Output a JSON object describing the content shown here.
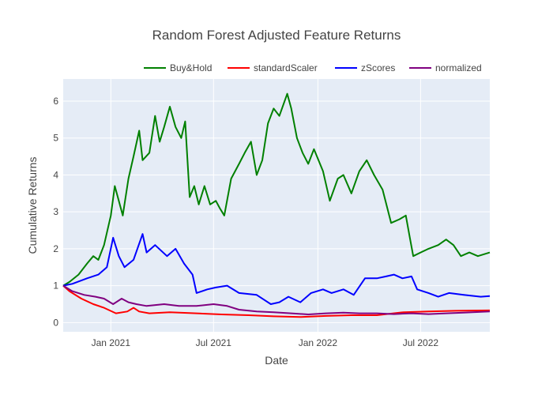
{
  "chart_data": {
    "type": "line",
    "title": "Random Forest Adjusted Feature Returns",
    "xlabel": "Date",
    "ylabel": "Cumulative Returns",
    "xlim": [
      "2020-10-09",
      "2022-10-31"
    ],
    "ylim": [
      -0.25,
      6.6
    ],
    "x_ticks": [
      {
        "date": "2021-01-01",
        "label": "Jan 2021"
      },
      {
        "date": "2021-07-01",
        "label": "Jul 2021"
      },
      {
        "date": "2022-01-01",
        "label": "Jan 2022"
      },
      {
        "date": "2022-07-01",
        "label": "Jul 2022"
      }
    ],
    "y_ticks": [
      0,
      1,
      2,
      3,
      4,
      5,
      6
    ],
    "grid": true,
    "legend_position": "top-right",
    "plot_background": "#E5ECF6",
    "series": [
      {
        "name": "Buy&Hold",
        "color": "#008000",
        "points": [
          [
            "2020-10-09",
            1.0
          ],
          [
            "2020-10-20",
            1.1
          ],
          [
            "2020-11-05",
            1.3
          ],
          [
            "2020-11-20",
            1.6
          ],
          [
            "2020-12-01",
            1.8
          ],
          [
            "2020-12-10",
            1.7
          ],
          [
            "2020-12-20",
            2.1
          ],
          [
            "2021-01-01",
            2.9
          ],
          [
            "2021-01-08",
            3.7
          ],
          [
            "2021-01-15",
            3.3
          ],
          [
            "2021-01-22",
            2.9
          ],
          [
            "2021-02-01",
            3.9
          ],
          [
            "2021-02-10",
            4.5
          ],
          [
            "2021-02-20",
            5.2
          ],
          [
            "2021-02-26",
            4.4
          ],
          [
            "2021-03-10",
            4.6
          ],
          [
            "2021-03-20",
            5.6
          ],
          [
            "2021-03-28",
            4.9
          ],
          [
            "2021-04-05",
            5.3
          ],
          [
            "2021-04-15",
            5.85
          ],
          [
            "2021-04-25",
            5.3
          ],
          [
            "2021-05-05",
            5.0
          ],
          [
            "2021-05-12",
            5.45
          ],
          [
            "2021-05-20",
            3.4
          ],
          [
            "2021-05-28",
            3.7
          ],
          [
            "2021-06-05",
            3.2
          ],
          [
            "2021-06-15",
            3.7
          ],
          [
            "2021-06-25",
            3.2
          ],
          [
            "2021-07-05",
            3.3
          ],
          [
            "2021-07-12",
            3.1
          ],
          [
            "2021-07-20",
            2.9
          ],
          [
            "2021-08-01",
            3.9
          ],
          [
            "2021-08-15",
            4.3
          ],
          [
            "2021-08-25",
            4.6
          ],
          [
            "2021-09-05",
            4.9
          ],
          [
            "2021-09-15",
            4.0
          ],
          [
            "2021-09-25",
            4.4
          ],
          [
            "2021-10-05",
            5.4
          ],
          [
            "2021-10-15",
            5.8
          ],
          [
            "2021-10-25",
            5.6
          ],
          [
            "2021-11-08",
            6.2
          ],
          [
            "2021-11-15",
            5.8
          ],
          [
            "2021-11-25",
            5.0
          ],
          [
            "2021-12-05",
            4.6
          ],
          [
            "2021-12-15",
            4.3
          ],
          [
            "2021-12-25",
            4.7
          ],
          [
            "2022-01-10",
            4.1
          ],
          [
            "2022-01-22",
            3.3
          ],
          [
            "2022-02-05",
            3.9
          ],
          [
            "2022-02-15",
            4.0
          ],
          [
            "2022-03-01",
            3.5
          ],
          [
            "2022-03-15",
            4.1
          ],
          [
            "2022-03-28",
            4.4
          ],
          [
            "2022-04-10",
            4.0
          ],
          [
            "2022-04-25",
            3.6
          ],
          [
            "2022-05-10",
            2.7
          ],
          [
            "2022-05-25",
            2.8
          ],
          [
            "2022-06-05",
            2.9
          ],
          [
            "2022-06-12",
            2.3
          ],
          [
            "2022-06-18",
            1.8
          ],
          [
            "2022-07-01",
            1.9
          ],
          [
            "2022-07-15",
            2.0
          ],
          [
            "2022-08-01",
            2.1
          ],
          [
            "2022-08-15",
            2.25
          ],
          [
            "2022-08-28",
            2.1
          ],
          [
            "2022-09-10",
            1.8
          ],
          [
            "2022-09-25",
            1.9
          ],
          [
            "2022-10-10",
            1.8
          ],
          [
            "2022-10-31",
            1.9
          ]
        ]
      },
      {
        "name": "standardScaler",
        "color": "#FF0000",
        "points": [
          [
            "2020-10-09",
            1.0
          ],
          [
            "2020-10-20",
            0.85
          ],
          [
            "2020-11-10",
            0.65
          ],
          [
            "2020-12-01",
            0.5
          ],
          [
            "2020-12-20",
            0.4
          ],
          [
            "2021-01-10",
            0.25
          ],
          [
            "2021-01-30",
            0.3
          ],
          [
            "2021-02-10",
            0.4
          ],
          [
            "2021-02-20",
            0.3
          ],
          [
            "2021-03-10",
            0.25
          ],
          [
            "2021-04-15",
            0.28
          ],
          [
            "2021-06-01",
            0.25
          ],
          [
            "2021-07-15",
            0.22
          ],
          [
            "2021-09-01",
            0.2
          ],
          [
            "2021-10-15",
            0.17
          ],
          [
            "2021-12-01",
            0.15
          ],
          [
            "2022-01-15",
            0.18
          ],
          [
            "2022-03-01",
            0.2
          ],
          [
            "2022-04-15",
            0.2
          ],
          [
            "2022-06-01",
            0.28
          ],
          [
            "2022-07-15",
            0.3
          ],
          [
            "2022-09-01",
            0.32
          ],
          [
            "2022-10-31",
            0.33
          ]
        ]
      },
      {
        "name": "zScores",
        "color": "#0000FF",
        "points": [
          [
            "2020-10-09",
            1.0
          ],
          [
            "2020-10-25",
            1.05
          ],
          [
            "2020-11-20",
            1.2
          ],
          [
            "2020-12-10",
            1.3
          ],
          [
            "2020-12-25",
            1.5
          ],
          [
            "2021-01-05",
            2.3
          ],
          [
            "2021-01-15",
            1.8
          ],
          [
            "2021-01-25",
            1.5
          ],
          [
            "2021-02-10",
            1.7
          ],
          [
            "2021-02-26",
            2.4
          ],
          [
            "2021-03-05",
            1.9
          ],
          [
            "2021-03-20",
            2.1
          ],
          [
            "2021-04-10",
            1.8
          ],
          [
            "2021-04-25",
            2.0
          ],
          [
            "2021-05-10",
            1.6
          ],
          [
            "2021-05-25",
            1.3
          ],
          [
            "2021-06-01",
            0.8
          ],
          [
            "2021-06-20",
            0.9
          ],
          [
            "2021-07-05",
            0.95
          ],
          [
            "2021-07-25",
            1.0
          ],
          [
            "2021-08-15",
            0.8
          ],
          [
            "2021-09-15",
            0.75
          ],
          [
            "2021-10-10",
            0.5
          ],
          [
            "2021-10-25",
            0.55
          ],
          [
            "2021-11-10",
            0.7
          ],
          [
            "2021-12-01",
            0.55
          ],
          [
            "2021-12-20",
            0.8
          ],
          [
            "2022-01-10",
            0.9
          ],
          [
            "2022-01-25",
            0.8
          ],
          [
            "2022-02-15",
            0.9
          ],
          [
            "2022-03-05",
            0.75
          ],
          [
            "2022-03-25",
            1.2
          ],
          [
            "2022-04-15",
            1.2
          ],
          [
            "2022-05-01",
            1.25
          ],
          [
            "2022-05-15",
            1.3
          ],
          [
            "2022-05-30",
            1.2
          ],
          [
            "2022-06-15",
            1.25
          ],
          [
            "2022-06-25",
            0.9
          ],
          [
            "2022-07-15",
            0.8
          ],
          [
            "2022-08-01",
            0.7
          ],
          [
            "2022-08-20",
            0.8
          ],
          [
            "2022-09-15",
            0.75
          ],
          [
            "2022-10-15",
            0.7
          ],
          [
            "2022-10-31",
            0.72
          ]
        ]
      },
      {
        "name": "normalized",
        "color": "#800080",
        "points": [
          [
            "2020-10-09",
            1.0
          ],
          [
            "2020-10-25",
            0.85
          ],
          [
            "2020-11-15",
            0.75
          ],
          [
            "2020-12-05",
            0.7
          ],
          [
            "2020-12-20",
            0.65
          ],
          [
            "2021-01-05",
            0.5
          ],
          [
            "2021-01-20",
            0.65
          ],
          [
            "2021-02-01",
            0.55
          ],
          [
            "2021-02-15",
            0.5
          ],
          [
            "2021-03-05",
            0.45
          ],
          [
            "2021-04-05",
            0.5
          ],
          [
            "2021-05-01",
            0.45
          ],
          [
            "2021-06-01",
            0.45
          ],
          [
            "2021-07-01",
            0.5
          ],
          [
            "2021-07-25",
            0.45
          ],
          [
            "2021-08-15",
            0.35
          ],
          [
            "2021-09-15",
            0.3
          ],
          [
            "2021-10-15",
            0.28
          ],
          [
            "2021-11-15",
            0.25
          ],
          [
            "2021-12-15",
            0.22
          ],
          [
            "2022-01-15",
            0.25
          ],
          [
            "2022-02-15",
            0.27
          ],
          [
            "2022-03-15",
            0.25
          ],
          [
            "2022-04-15",
            0.25
          ],
          [
            "2022-05-15",
            0.23
          ],
          [
            "2022-06-15",
            0.25
          ],
          [
            "2022-07-15",
            0.23
          ],
          [
            "2022-08-15",
            0.25
          ],
          [
            "2022-09-15",
            0.27
          ],
          [
            "2022-10-31",
            0.3
          ]
        ]
      }
    ]
  }
}
